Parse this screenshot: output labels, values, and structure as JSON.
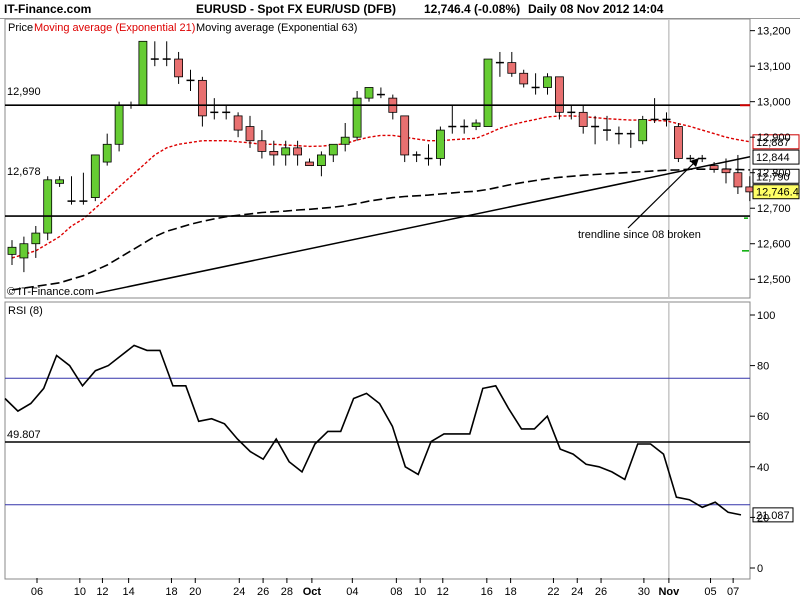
{
  "header": {
    "brand": "IT-Finance.com",
    "instrument": "EURUSD - Spot FX EUR/USD (DFB)",
    "last_price": "12,746.4 (-0.08%)",
    "period": "Daily  08 Nov 2012 14:04"
  },
  "price_panel": {
    "legend_price": "Price",
    "legend_ema21": "Moving average (Exponential 21)",
    "legend_ema63": "Moving average (Exponential 63)",
    "watermark": "© IT-Finance.com",
    "hline_labels": [
      "12,990",
      "12,678"
    ],
    "annotation": "trendline since 08 broken",
    "y_ticks": [
      "13,200",
      "13,100",
      "13,000",
      "12,900",
      "12,800",
      "12,700",
      "12,600",
      "12,500"
    ],
    "badges": [
      "12,887",
      "12,844",
      "12,790",
      "12,746.4"
    ]
  },
  "rsi_panel": {
    "label": "RSI (8)",
    "hline_label": "49.807",
    "y_ticks": [
      "100",
      "80",
      "60",
      "40",
      "20",
      "0"
    ],
    "badge": "21.087"
  },
  "x_ticks": [
    "06",
    "10",
    "12",
    "14",
    "18",
    "20",
    "24",
    "26",
    "28",
    "Oct",
    "04",
    "08",
    "10",
    "12",
    "16",
    "18",
    "22",
    "24",
    "26",
    "30",
    "Nov",
    "05",
    "07"
  ],
  "colors": {
    "up": "#66cc33",
    "down": "#e87070",
    "ema21": "#dd0000",
    "ema63": "#000000",
    "rsi_line": "#000000",
    "rsi_band": "#3333aa"
  },
  "chart_data": [
    {
      "type": "candlestick",
      "title": "EURUSD - Spot FX EUR/USD (DFB)",
      "ylim": [
        12450,
        13230
      ],
      "candles": [
        {
          "o": 12570,
          "h": 12610,
          "l": 12540,
          "c": 12590
        },
        {
          "o": 12560,
          "h": 12620,
          "l": 12520,
          "c": 12600
        },
        {
          "o": 12600,
          "h": 12650,
          "l": 12560,
          "c": 12630
        },
        {
          "o": 12630,
          "h": 12790,
          "l": 12610,
          "c": 12780
        },
        {
          "o": 12770,
          "h": 12790,
          "l": 12760,
          "c": 12780
        },
        {
          "o": 12720,
          "h": 12790,
          "l": 12710,
          "c": 12720
        },
        {
          "o": 12720,
          "h": 12800,
          "l": 12710,
          "c": 12720
        },
        {
          "o": 12730,
          "h": 12850,
          "l": 12720,
          "c": 12850
        },
        {
          "o": 12830,
          "h": 12910,
          "l": 12820,
          "c": 12880
        },
        {
          "o": 12880,
          "h": 13000,
          "l": 12860,
          "c": 12990
        },
        {
          "o": 12990,
          "h": 13000,
          "l": 12980,
          "c": 12990
        },
        {
          "o": 12990,
          "h": 13170,
          "l": 12990,
          "c": 13170
        },
        {
          "o": 13120,
          "h": 13170,
          "l": 13100,
          "c": 13120
        },
        {
          "o": 13120,
          "h": 13170,
          "l": 13100,
          "c": 13120
        },
        {
          "o": 13120,
          "h": 13140,
          "l": 13050,
          "c": 13070
        },
        {
          "o": 13060,
          "h": 13090,
          "l": 13030,
          "c": 13060
        },
        {
          "o": 13060,
          "h": 13070,
          "l": 12930,
          "c": 12960
        },
        {
          "o": 12970,
          "h": 13010,
          "l": 12950,
          "c": 12970
        },
        {
          "o": 12970,
          "h": 12990,
          "l": 12950,
          "c": 12970
        },
        {
          "o": 12960,
          "h": 12970,
          "l": 12900,
          "c": 12920
        },
        {
          "o": 12930,
          "h": 12960,
          "l": 12870,
          "c": 12890
        },
        {
          "o": 12890,
          "h": 12920,
          "l": 12840,
          "c": 12860
        },
        {
          "o": 12860,
          "h": 12890,
          "l": 12820,
          "c": 12850
        },
        {
          "o": 12850,
          "h": 12890,
          "l": 12820,
          "c": 12870
        },
        {
          "o": 12870,
          "h": 12890,
          "l": 12820,
          "c": 12850
        },
        {
          "o": 12830,
          "h": 12840,
          "l": 12820,
          "c": 12820
        },
        {
          "o": 12820,
          "h": 12860,
          "l": 12790,
          "c": 12850
        },
        {
          "o": 12850,
          "h": 12880,
          "l": 12830,
          "c": 12880
        },
        {
          "o": 12880,
          "h": 12940,
          "l": 12860,
          "c": 12900
        },
        {
          "o": 12900,
          "h": 13030,
          "l": 12890,
          "c": 13010
        },
        {
          "o": 13010,
          "h": 13040,
          "l": 13000,
          "c": 13040
        },
        {
          "o": 13020,
          "h": 13040,
          "l": 13010,
          "c": 13020
        },
        {
          "o": 13010,
          "h": 13020,
          "l": 12950,
          "c": 12970
        },
        {
          "o": 12960,
          "h": 12960,
          "l": 12830,
          "c": 12850
        },
        {
          "o": 12850,
          "h": 12860,
          "l": 12830,
          "c": 12850
        },
        {
          "o": 12840,
          "h": 12880,
          "l": 12820,
          "c": 12840
        },
        {
          "o": 12840,
          "h": 12930,
          "l": 12820,
          "c": 12920
        },
        {
          "o": 12930,
          "h": 12990,
          "l": 12910,
          "c": 12930
        },
        {
          "o": 12930,
          "h": 12950,
          "l": 12910,
          "c": 12930
        },
        {
          "o": 12930,
          "h": 12950,
          "l": 12920,
          "c": 12940
        },
        {
          "o": 12930,
          "h": 13120,
          "l": 12930,
          "c": 13120
        },
        {
          "o": 13110,
          "h": 13140,
          "l": 13070,
          "c": 13110
        },
        {
          "o": 13110,
          "h": 13140,
          "l": 13070,
          "c": 13080
        },
        {
          "o": 13080,
          "h": 13090,
          "l": 13040,
          "c": 13050
        },
        {
          "o": 13040,
          "h": 13080,
          "l": 13020,
          "c": 13040
        },
        {
          "o": 13040,
          "h": 13080,
          "l": 13020,
          "c": 13070
        },
        {
          "o": 13070,
          "h": 13070,
          "l": 12950,
          "c": 12970
        },
        {
          "o": 12970,
          "h": 12990,
          "l": 12950,
          "c": 12970
        },
        {
          "o": 12970,
          "h": 12990,
          "l": 12910,
          "c": 12930
        },
        {
          "o": 12930,
          "h": 12960,
          "l": 12880,
          "c": 12930
        },
        {
          "o": 12920,
          "h": 12960,
          "l": 12890,
          "c": 12920
        },
        {
          "o": 12910,
          "h": 12930,
          "l": 12880,
          "c": 12910
        },
        {
          "o": 12910,
          "h": 12920,
          "l": 12870,
          "c": 12910
        },
        {
          "o": 12890,
          "h": 12960,
          "l": 12880,
          "c": 12950
        },
        {
          "o": 12950,
          "h": 13010,
          "l": 12940,
          "c": 12950
        },
        {
          "o": 12950,
          "h": 12970,
          "l": 12930,
          "c": 12950
        },
        {
          "o": 12930,
          "h": 12940,
          "l": 12830,
          "c": 12840
        },
        {
          "o": 12840,
          "h": 12850,
          "l": 12830,
          "c": 12840
        },
        {
          "o": 12840,
          "h": 12850,
          "l": 12830,
          "c": 12840
        },
        {
          "o": 12820,
          "h": 12830,
          "l": 12800,
          "c": 12810
        },
        {
          "o": 12810,
          "h": 12840,
          "l": 12770,
          "c": 12800
        },
        {
          "o": 12800,
          "h": 12850,
          "l": 12740,
          "c": 12760
        },
        {
          "o": 12760,
          "h": 12790,
          "l": 12720,
          "c": 12746
        }
      ],
      "ema21": [
        12560,
        12570,
        12580,
        12600,
        12620,
        12650,
        12670,
        12700,
        12730,
        12760,
        12790,
        12820,
        12850,
        12870,
        12880,
        12885,
        12890,
        12890,
        12890,
        12887,
        12884,
        12880,
        12880,
        12878,
        12876,
        12874,
        12875,
        12878,
        12882,
        12892,
        12900,
        12905,
        12905,
        12900,
        12895,
        12890,
        12890,
        12893,
        12895,
        12897,
        12910,
        12925,
        12935,
        12943,
        12950,
        12957,
        12960,
        12960,
        12958,
        12955,
        12952,
        12950,
        12948,
        12948,
        12947,
        12946,
        12938,
        12930,
        12920,
        12910,
        12900,
        12893,
        12887
      ],
      "ema63": [
        12470,
        12475,
        12480,
        12485,
        12490,
        12500,
        12510,
        12525,
        12540,
        12560,
        12580,
        12600,
        12620,
        12635,
        12645,
        12655,
        12663,
        12670,
        12676,
        12680,
        12684,
        12688,
        12690,
        12692,
        12695,
        12697,
        12700,
        12703,
        12707,
        12713,
        12720,
        12725,
        12730,
        12733,
        12735,
        12737,
        12740,
        12743,
        12746,
        12748,
        12753,
        12760,
        12767,
        12773,
        12778,
        12783,
        12787,
        12790,
        12793,
        12795,
        12797,
        12799,
        12801,
        12803,
        12805,
        12807,
        12808,
        12810,
        12810,
        12810,
        12810,
        12809,
        12808
      ],
      "horizontal_lines": [
        12990,
        12678
      ],
      "trendline": {
        "from": [
          2,
          12460
        ],
        "to": [
          60,
          12825
        ]
      }
    },
    {
      "type": "line",
      "title": "RSI (8)",
      "ylim": [
        0,
        100
      ],
      "hline": 49.807,
      "bands": [
        75,
        25
      ],
      "values": [
        67,
        62,
        65,
        71,
        84,
        80,
        72,
        78,
        80,
        84,
        88,
        86,
        86,
        72,
        72,
        58,
        59,
        57,
        51,
        46,
        43,
        51,
        42,
        38,
        49,
        54,
        54,
        67,
        69,
        65,
        56,
        40,
        37,
        50,
        53,
        53,
        53,
        71,
        72,
        63,
        55,
        55,
        60,
        47,
        45,
        41,
        40,
        38,
        35,
        49,
        49,
        45,
        28,
        27,
        24,
        26,
        22,
        21
      ]
    }
  ]
}
